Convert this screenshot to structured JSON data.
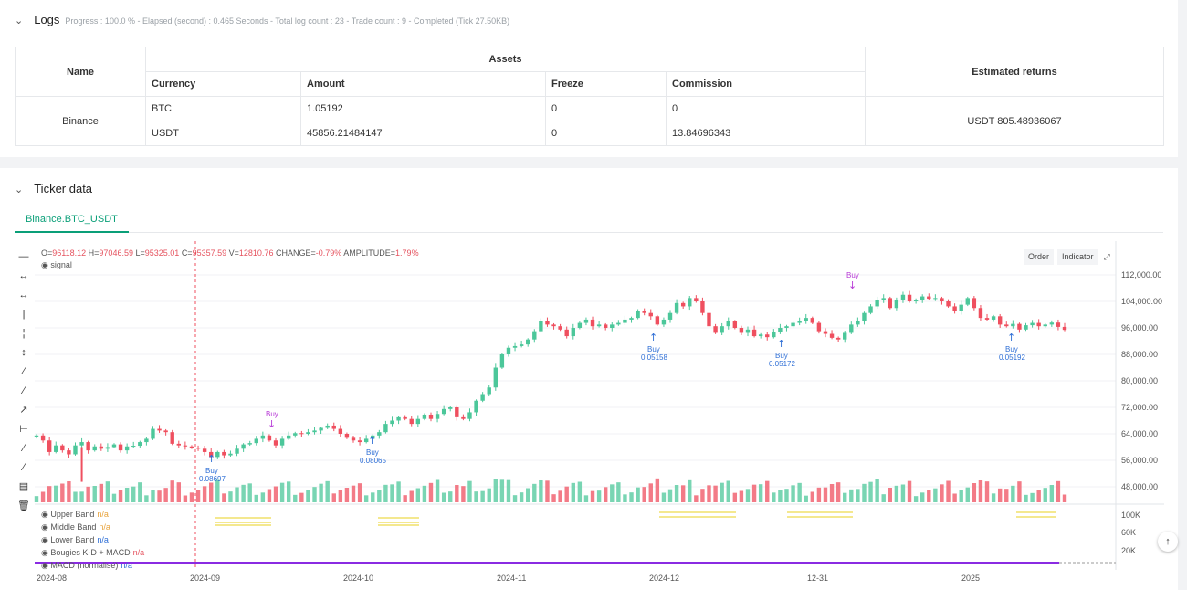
{
  "logs": {
    "title": "Logs",
    "summary": "Progress : 100.0 % - Elapsed (second) : 0.465  Seconds - Total log count : 23 - Trade count : 9 - Completed (Tick 27.50KB)"
  },
  "assets_table": {
    "header_name": "Name",
    "header_assets": "Assets",
    "header_returns": "Estimated returns",
    "cols": [
      "Currency",
      "Amount",
      "Freeze",
      "Commission"
    ],
    "exchange": "Binance",
    "rows": [
      [
        "BTC",
        "1.05192",
        "0",
        "0"
      ],
      [
        "USDT",
        "45856.21484147",
        "0",
        "13.84696343"
      ]
    ],
    "estimated_returns": "USDT 805.48936067"
  },
  "ticker": {
    "title": "Ticker data",
    "tab": "Binance.BTC_USDT",
    "ohlc": {
      "o_label": "O=",
      "o": "96118.12",
      "h_label": "H=",
      "h": "97046.59",
      "l_label": "L=",
      "l": "95325.01",
      "c_label": "C=",
      "c": "95357.59",
      "v_label": "V=",
      "v": "12810.76",
      "change_label": "CHANGE=",
      "change": "-0.79%",
      "amp_label": "AMPLITUDE=",
      "amp": "1.79%"
    },
    "signal_label": "signal",
    "buttons": {
      "order": "Order",
      "indicator": "Indicator"
    },
    "indicators": [
      {
        "name": "Upper Band",
        "value": "n/a",
        "color": "#e8a33c"
      },
      {
        "name": "Middle Band",
        "value": "n/a",
        "color": "#e8a33c"
      },
      {
        "name": "Lower Band",
        "value": "n/a",
        "color": "#2f6fd6"
      },
      {
        "name": "Bougies K-D + MACD",
        "value": "n/a",
        "color": "#e5535f"
      },
      {
        "name": "MACD (normalisé)",
        "value": "n/a",
        "color": "#2f6fd6"
      }
    ]
  },
  "chart_data": {
    "type": "candlestick",
    "price_axis": [
      "112,000.00",
      "104,000.00",
      "96,000.00",
      "88,000.00",
      "80,000.00",
      "72,000.00",
      "64,000.00",
      "56,000.00",
      "48,000.00"
    ],
    "volume_axis": [
      "100K",
      "60K",
      "20K"
    ],
    "x_labels": [
      "2024-08",
      "2024-09",
      "2024-10",
      "2024-11",
      "2024-12",
      "12-31",
      "2025"
    ],
    "closes": [
      63500,
      62000,
      58500,
      60500,
      59000,
      57800,
      60500,
      61500,
      59000,
      60200,
      59500,
      60000,
      60800,
      59000,
      60200,
      60400,
      61500,
      62500,
      65500,
      65000,
      64500,
      61000,
      60500,
      60200,
      59800,
      59500,
      58500,
      57000,
      58500,
      57500,
      58000,
      59500,
      60800,
      61200,
      62500,
      63500,
      62000,
      60500,
      62500,
      63500,
      64200,
      64000,
      64500,
      65000,
      65800,
      66500,
      65500,
      64000,
      62800,
      62000,
      61500,
      62500,
      63500,
      64500,
      67000,
      68000,
      69000,
      68500,
      67000,
      68500,
      69800,
      68500,
      70000,
      71500,
      72000,
      69000,
      68500,
      70500,
      74000,
      76000,
      78000,
      84000,
      88000,
      90000,
      90500,
      91000,
      92500,
      95000,
      98000,
      97000,
      96500,
      95500,
      93500,
      96000,
      97500,
      98500,
      96500,
      97000,
      96000,
      97000,
      97500,
      98500,
      99000,
      101000,
      100500,
      99500,
      97000,
      98500,
      100500,
      103500,
      102500,
      105000,
      104000,
      100500,
      96500,
      94500,
      96500,
      98000,
      96000,
      94500,
      95500,
      93500,
      94000,
      93200,
      94800,
      96000,
      96500,
      97500,
      98200,
      99000,
      97500,
      95000,
      94200,
      93000,
      92500,
      94500,
      97000,
      98000,
      100500,
      102500,
      104500,
      105000,
      102000,
      104500,
      106000,
      104000,
      104500,
      105500,
      104800,
      105000,
      104000,
      102500,
      101000,
      103000,
      105000,
      102000,
      99000,
      98500,
      99500,
      97000,
      96500,
      97200,
      95500,
      96800,
      97500,
      96500,
      97000,
      97600,
      96300,
      95400
    ],
    "buy_markers": [
      {
        "label": "Buy",
        "value": "0.08697",
        "dir": "up"
      },
      {
        "label": "Buy",
        "value": "",
        "dir": "down"
      },
      {
        "label": "Buy",
        "value": "0.08065",
        "dir": "up"
      },
      {
        "label": "Buy",
        "value": "0.05158",
        "dir": "up"
      },
      {
        "label": "Buy",
        "value": "0.05172",
        "dir": "up"
      },
      {
        "label": "Buy",
        "value": "",
        "dir": "down"
      },
      {
        "label": "Buy",
        "value": "0.05192",
        "dir": "up"
      }
    ]
  },
  "colors": {
    "up": "#4cc79a",
    "down": "#ef4f5f",
    "accent": "#0a9f78"
  }
}
